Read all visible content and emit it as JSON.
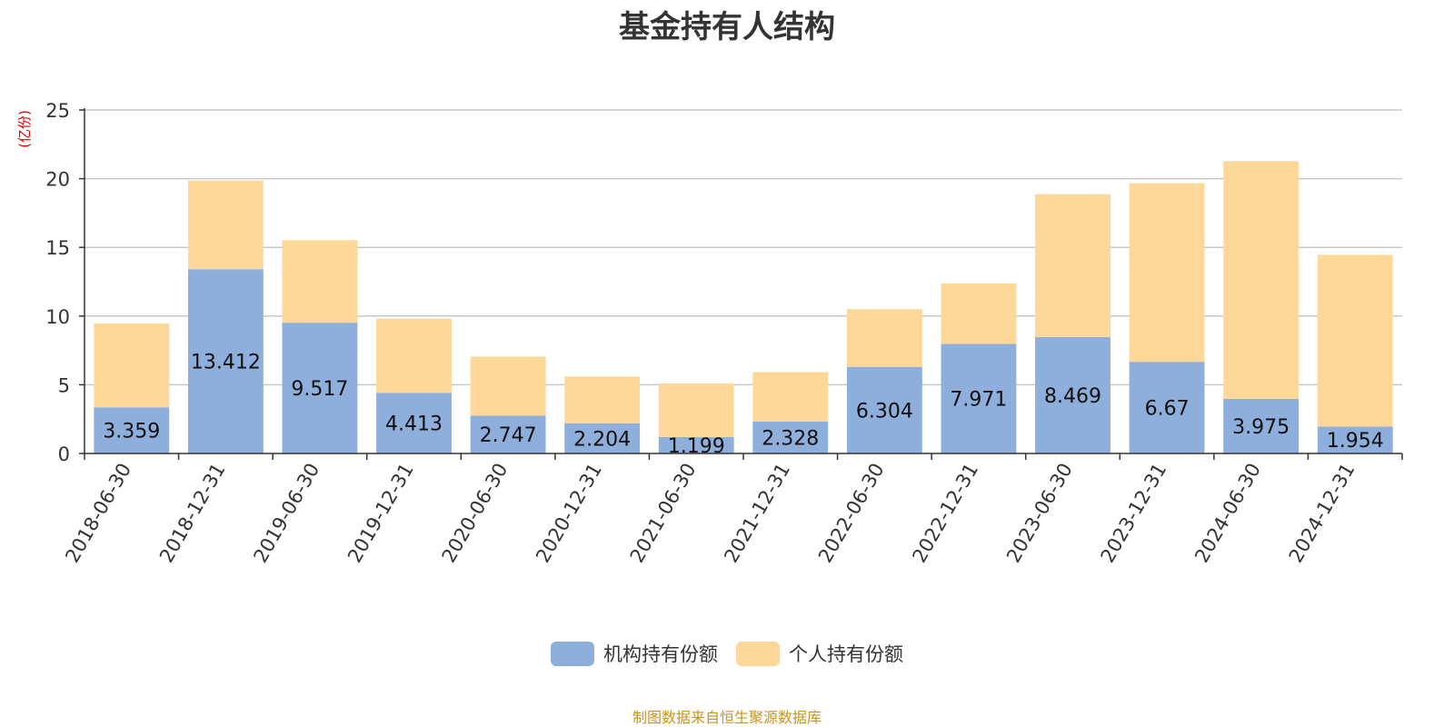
{
  "chart_data": {
    "type": "bar",
    "stacked": true,
    "title": "基金持有人结构",
    "ylabel": "(亿份)",
    "xlabel": "",
    "ylim": [
      0,
      25
    ],
    "yticks": [
      0,
      5,
      10,
      15,
      20,
      25
    ],
    "grid": true,
    "legend_position": "bottom-center",
    "categories": [
      "2018-06-30",
      "2018-12-31",
      "2019-06-30",
      "2019-12-31",
      "2020-06-30",
      "2020-12-31",
      "2021-06-30",
      "2021-12-31",
      "2022-06-30",
      "2022-12-31",
      "2023-06-30",
      "2023-12-31",
      "2024-06-30",
      "2024-12-31"
    ],
    "series": [
      {
        "name": "机构持有份额",
        "color": "#8eaedc",
        "labeled": true,
        "values": [
          3.359,
          13.412,
          9.517,
          4.413,
          2.747,
          2.204,
          1.199,
          2.328,
          6.304,
          7.971,
          8.469,
          6.67,
          3.975,
          1.954
        ],
        "labels": [
          "3.359",
          "13.412",
          "9.517",
          "4.413",
          "2.747",
          "2.204",
          "1.199",
          "2.328",
          "6.304",
          "7.971",
          "8.469",
          "6.67",
          "3.975",
          "1.954"
        ]
      },
      {
        "name": "个人持有份额",
        "color": "#fed899",
        "labeled": false,
        "values": [
          6.1,
          6.45,
          6.0,
          5.4,
          4.3,
          3.4,
          3.9,
          3.6,
          4.2,
          4.4,
          10.4,
          13.0,
          17.3,
          12.5
        ]
      }
    ]
  },
  "source_note": "制图数据来自恒生聚源数据库"
}
